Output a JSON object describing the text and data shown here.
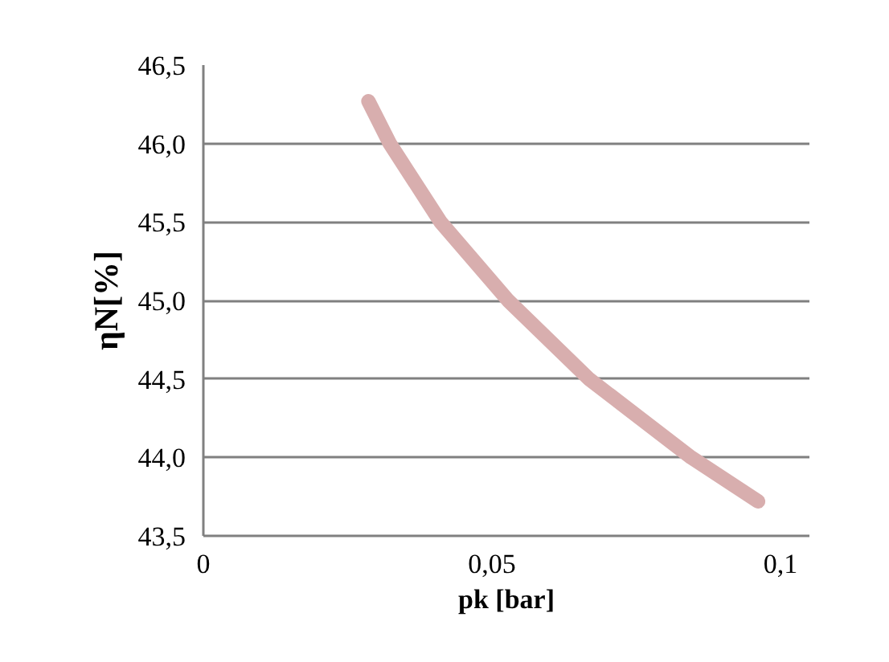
{
  "chart_data": {
    "type": "line",
    "xlabel": "pk [bar]",
    "ylabel": "ηN[%]",
    "series": [
      {
        "color": "#d8aeae",
        "x": [
          0.0286,
          0.0323,
          0.0411,
          0.0528,
          0.0668,
          0.0845,
          0.0961
        ],
        "values": [
          46.27,
          46.0,
          45.5,
          45.0,
          44.5,
          44.0,
          43.72
        ]
      }
    ],
    "xlim": [
      0,
      0.105
    ],
    "ylim": [
      43.5,
      46.5
    ],
    "xticks": [
      0,
      {
        "value": 0.05,
        "label": "0,05"
      },
      {
        "value": 0.1,
        "label": "0,1"
      }
    ],
    "yticks": [
      {
        "value": 43.5,
        "label": "43,5"
      },
      {
        "value": 44.0,
        "label": "44,0"
      },
      {
        "value": 44.5,
        "label": "44,5"
      },
      {
        "value": 45.0,
        "label": "45,0"
      },
      {
        "value": 45.5,
        "label": "45,5"
      },
      {
        "value": 46.0,
        "label": "46,0"
      },
      {
        "value": 46.5,
        "label": "46,5"
      }
    ],
    "grid": "y",
    "marker": "none",
    "line_style": "solid"
  }
}
